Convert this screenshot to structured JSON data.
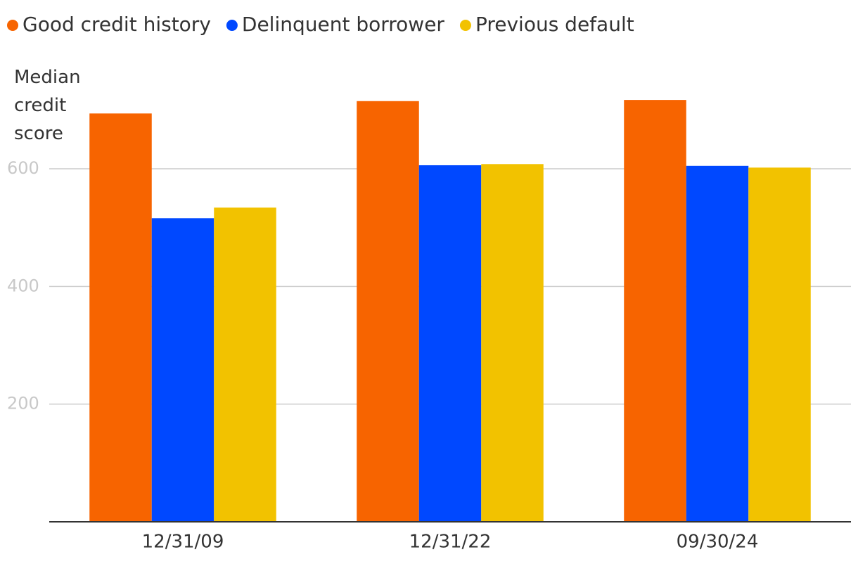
{
  "chart_data": {
    "type": "bar",
    "y_axis_label": "Median credit score",
    "categories": [
      "12/31/09",
      "12/31/22",
      "09/30/24"
    ],
    "series": [
      {
        "name": "Good credit history",
        "color": "#f76400",
        "values": [
          694,
          715,
          717
        ]
      },
      {
        "name": "Delinquent borrower",
        "color": "#0048ff",
        "values": [
          516,
          606,
          605
        ]
      },
      {
        "name": "Previous default",
        "color": "#f2c200",
        "values": [
          534,
          608,
          602
        ]
      }
    ],
    "ylim": [
      0,
      750
    ],
    "yticks": [
      200,
      400,
      600
    ],
    "grid": true,
    "legend": "top"
  }
}
